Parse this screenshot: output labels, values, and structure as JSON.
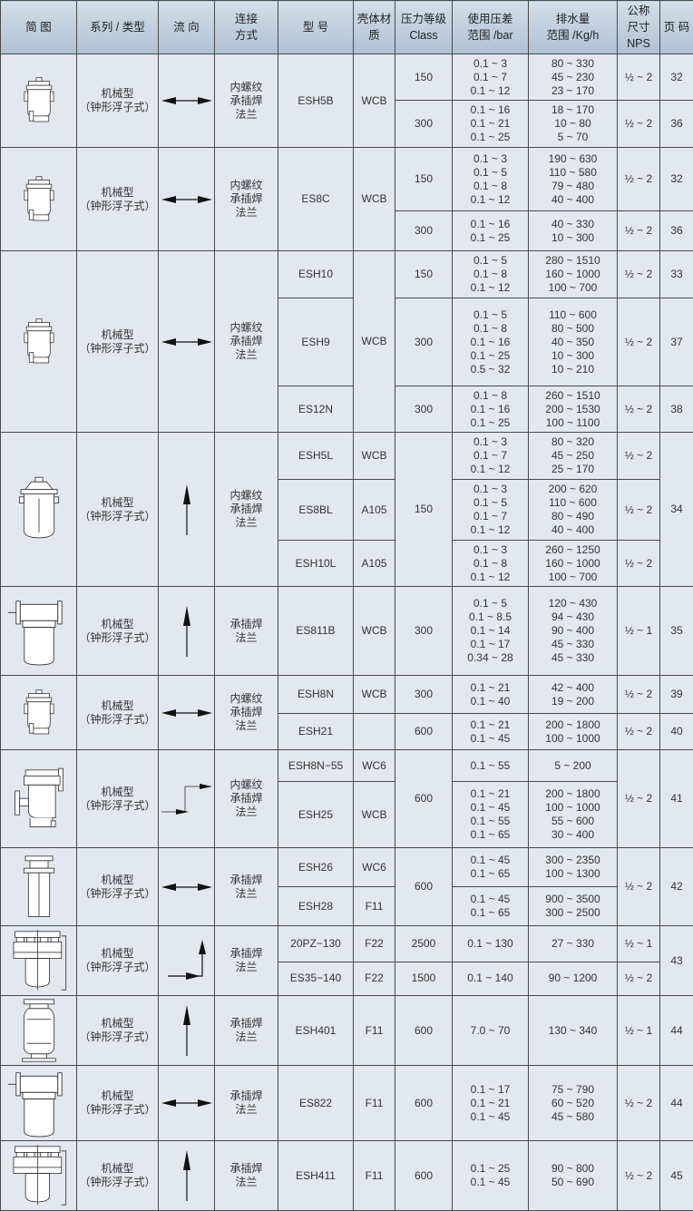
{
  "colors": {
    "header_bg": "#aec1d4",
    "cell_bg": "#e2e8ee",
    "border": "#4a4a4a",
    "text": "#333333"
  },
  "header": [
    "简 图",
    "系列 / 类型",
    "流 向",
    "连接\n方式",
    "型 号",
    "壳体材\n质",
    "压力等级\nClass",
    "使用压差\n范围 /bar",
    "排水量\n范围 /Kg/h",
    "公称\n尺寸\nNPS",
    "页 码"
  ],
  "groups": [
    {
      "icon": "bell-float-trap-icon",
      "type": "机械型\n（钟形浮子式）",
      "flow": "horizontal-double-arrow",
      "connection": "内螺纹\n承插焊\n法兰"
    },
    {
      "icon": "bell-float-trap-icon",
      "type": "机械型\n（钟形浮子式）",
      "flow": "horizontal-double-arrow",
      "connection": "内螺纹\n承插焊\n法兰"
    },
    {
      "icon": "bell-float-trap-icon",
      "type": "机械型\n（钟形浮子式）",
      "flow": "horizontal-double-arrow",
      "connection": "内螺纹\n承插焊\n法兰"
    },
    {
      "icon": "vertical-bell-trap-icon",
      "type": "机械型\n（钟形浮子式）",
      "flow": "up-arrow",
      "connection": "内螺纹\n承插焊\n法兰"
    },
    {
      "icon": "flanged-bowl-trap-icon",
      "type": "机械型\n（钟形浮子式）",
      "flow": "up-arrow",
      "connection": "承插焊\n法兰"
    },
    {
      "icon": "bell-float-trap-icon",
      "type": "机械型\n（钟形浮子式）",
      "flow": "horizontal-double-arrow",
      "connection": "内螺纹\n承插焊\n法兰"
    },
    {
      "icon": "side-flanged-trap-icon",
      "type": "机械型\n（钟形浮子式）",
      "flow": "step-arrow",
      "connection": "内螺纹\n承插焊\n法兰"
    },
    {
      "icon": "tall-cylinder-trap-icon",
      "type": "机械型\n（钟形浮子式）",
      "flow": "horizontal-double-arrow",
      "connection": "承插焊\n法兰"
    },
    {
      "icon": "bolted-cover-trap-icon",
      "type": "机械型\n（钟形浮子式）",
      "flow": "corner-arrow",
      "connection": "承插焊\n法兰"
    },
    {
      "icon": "flanged-vessel-trap-icon",
      "type": "机械型\n（钟形浮子式）",
      "flow": "up-arrow",
      "connection": "承插焊\n法兰"
    },
    {
      "icon": "flanged-bowl-trap-icon",
      "type": "机械型\n（钟形浮子式）",
      "flow": "horizontal-double-arrow",
      "connection": "承插焊\n法兰"
    },
    {
      "icon": "bolted-cover-trap-icon",
      "type": "机械型\n（钟形浮子式）",
      "flow": "up-arrow",
      "connection": "承插焊\n法兰"
    }
  ],
  "rows": [
    {
      "model": "ESH5B",
      "material": "WCB",
      "class": "150",
      "pressure": "0.1 ~ 3\n0.1 ~ 7\n0.1 ~ 12",
      "discharge": "80 ~ 330\n45 ~ 230\n23 ~ 170",
      "nps": "½ ~ 2",
      "page": "32"
    },
    {
      "class": "300",
      "pressure": "0.1 ~ 16\n0.1 ~ 21\n0.1 ~ 25",
      "discharge": "18 ~ 170\n10 ~ 80\n5 ~ 70",
      "nps": "½ ~ 2",
      "page": "36"
    },
    {
      "model": "ES8C",
      "material": "WCB",
      "class": "150",
      "pressure": "0.1 ~ 3\n0.1 ~ 5\n0.1 ~ 8\n0.1 ~ 12",
      "discharge": "190 ~ 630\n110 ~ 580\n79 ~ 480\n40 ~ 400",
      "nps": "½ ~ 2",
      "page": "32"
    },
    {
      "class": "300",
      "pressure": "0.1 ~ 16\n0.1 ~ 25",
      "discharge": "40 ~ 330\n10 ~ 300",
      "nps": "½ ~ 2",
      "page": "36"
    },
    {
      "model": "ESH10",
      "material": "WCB",
      "class": "150",
      "pressure": "0.1 ~ 5\n0.1 ~ 8\n0.1 ~ 12",
      "discharge": "280 ~ 1510\n160 ~ 1000\n100 ~ 700",
      "nps": "½ ~ 2",
      "page": "33"
    },
    {
      "model": "ESH9",
      "class": "300",
      "pressure": "0.1 ~ 5\n0.1 ~ 8\n0.1 ~ 16\n0.1 ~ 25\n0.5 ~ 32",
      "discharge": "110 ~ 600\n80 ~ 500\n40 ~ 350\n10 ~ 300\n10 ~ 210",
      "nps": "½ ~ 2",
      "page": "37"
    },
    {
      "model": "ES12N",
      "class": "300",
      "pressure": "0.1 ~ 8\n0.1 ~ 16\n0.1 ~ 25",
      "discharge": "260 ~ 1510\n200 ~ 1530\n100 ~ 1100",
      "nps": "½ ~ 2",
      "page": "38"
    },
    {
      "model": "ESH5L",
      "material": "WCB",
      "class": "150",
      "pressure": "0.1 ~ 3\n0.1 ~ 7\n0.1 ~ 12",
      "discharge": "80 ~ 320\n45 ~ 250\n25 ~ 170",
      "nps": "½ ~ 2",
      "page": "34"
    },
    {
      "model": "ES8BL",
      "material": "A105",
      "pressure": "0.1 ~ 3\n0.1 ~ 5\n0.1 ~ 7\n0.1 ~ 12",
      "discharge": "200 ~ 620\n110 ~ 600\n80 ~ 490\n40 ~ 400",
      "nps": "½ ~ 2"
    },
    {
      "model": "ESH10L",
      "material": "A105",
      "pressure": "0.1 ~ 3\n0.1 ~ 8\n0.1 ~ 12",
      "discharge": "260 ~ 1250\n160 ~ 1000\n100 ~ 700",
      "nps": "½ ~ 2"
    },
    {
      "model": "ES811B",
      "material": "WCB",
      "class": "300",
      "pressure": "0.1 ~ 5\n0.1 ~ 8.5\n0.1 ~ 14\n0.1 ~ 17\n0.34 ~ 28",
      "discharge": "120 ~ 430\n94 ~ 430\n90 ~ 400\n45 ~ 330\n45 ~ 330",
      "nps": "½ ~ 1",
      "page": "35"
    },
    {
      "model": "ESH8N",
      "material": "WCB",
      "class": "300",
      "pressure": "0.1 ~ 21\n0.1 ~ 40",
      "discharge": "42 ~ 400\n19 ~ 200",
      "nps": "½ ~ 2",
      "page": "39"
    },
    {
      "model": "ESH21",
      "material": "",
      "class": "600",
      "pressure": "0.1 ~ 21\n0.1 ~ 45",
      "discharge": "200 ~ 1800\n100 ~ 1000",
      "nps": "½ ~ 2",
      "page": "40"
    },
    {
      "model": "ESH8N−55",
      "material": "WC6",
      "class": "600",
      "pressure": "0.1 ~ 55",
      "discharge": "5 ~ 200",
      "nps": "½ ~ 2",
      "page": "41"
    },
    {
      "model": "ESH25",
      "material": "WCB",
      "pressure": "0.1 ~ 21\n0.1 ~ 45\n0.1 ~ 55\n0.1 ~ 65",
      "discharge": "200 ~ 1800\n100 ~ 1000\n55 ~ 600\n30 ~ 400"
    },
    {
      "model": "ESH26",
      "material": "WC6",
      "class": "600",
      "pressure": "0.1 ~ 45\n0.1 ~ 65",
      "discharge": "300 ~ 2350\n100 ~ 1300",
      "nps": "½ ~ 2",
      "page": "42"
    },
    {
      "model": "ESH28",
      "material": "F11",
      "pressure": "0.1 ~ 45\n0.1 ~ 65",
      "discharge": "900 ~ 3500\n300 ~ 2500"
    },
    {
      "model": "20PZ−130",
      "material": "F22",
      "class": "2500",
      "pressure": "0.1 ~ 130",
      "discharge": "27 ~ 330",
      "nps": "½ ~ 1",
      "page": "43"
    },
    {
      "model": "ES35−140",
      "material": "F22",
      "class": "1500",
      "pressure": "0.1 ~ 140",
      "discharge": "90 ~ 1200",
      "nps": "½ ~ 2"
    },
    {
      "model": "ESH401",
      "material": "F11",
      "class": "600",
      "pressure": "7.0 ~ 70",
      "discharge": "130 ~ 340",
      "nps": "½ ~ 1",
      "page": "44"
    },
    {
      "model": "ES822",
      "material": "F11",
      "class": "600",
      "pressure": "0.1 ~ 17\n0.1 ~ 21\n0.1 ~ 45",
      "discharge": "75 ~ 790\n60 ~ 520\n45 ~ 580",
      "nps": "½ ~ 2",
      "page": "44"
    },
    {
      "model": "ESH411",
      "material": "F11",
      "class": "600",
      "pressure": "0.1 ~ 25\n0.1 ~ 45",
      "discharge": "90 ~ 800\n50 ~ 690",
      "nps": "½ ~ 2",
      "page": "45"
    }
  ]
}
